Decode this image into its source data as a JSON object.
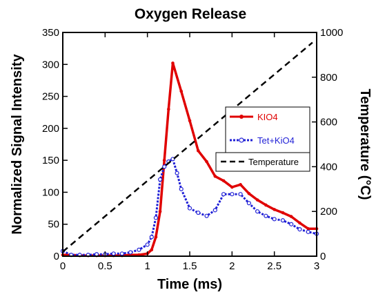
{
  "chart_data": {
    "type": "line",
    "title": "Oxygen Release",
    "xlabel": "Time (ms)",
    "ylabel": "Normalized Signal Intensity",
    "y2label": "Temperature (°C)",
    "xlim": [
      0,
      3
    ],
    "ylim": [
      0,
      350
    ],
    "y2lim": [
      0,
      1000
    ],
    "x_ticks": [
      "0",
      "0.5",
      "1",
      "1.5",
      "2",
      "2.5",
      "3"
    ],
    "y_ticks": [
      "0",
      "50",
      "100",
      "150",
      "200",
      "250",
      "300",
      "350"
    ],
    "y2_ticks": [
      "0",
      "200",
      "400",
      "600",
      "800",
      "1000"
    ],
    "legend_position": "right",
    "series": [
      {
        "name": "KIO4",
        "axis": "left",
        "color": "#e00000",
        "style": "solid",
        "marker": "dot",
        "x": [
          0,
          0.1,
          0.2,
          0.3,
          0.4,
          0.5,
          0.6,
          0.7,
          0.8,
          0.9,
          1.0,
          1.05,
          1.1,
          1.15,
          1.2,
          1.25,
          1.3,
          1.4,
          1.5,
          1.6,
          1.7,
          1.8,
          1.9,
          2.0,
          2.1,
          2.2,
          2.3,
          2.4,
          2.5,
          2.6,
          2.7,
          2.8,
          2.9,
          3.0
        ],
        "y": [
          2,
          2,
          1,
          1,
          1,
          1,
          1,
          1,
          2,
          2,
          4,
          10,
          30,
          70,
          150,
          230,
          302,
          258,
          212,
          165,
          148,
          125,
          118,
          108,
          112,
          98,
          88,
          80,
          73,
          68,
          62,
          52,
          43,
          43
        ]
      },
      {
        "name": "Tet+KiO4",
        "axis": "left",
        "color": "#1f1fd6",
        "style": "dotted",
        "marker": "open-circle",
        "x": [
          0,
          0.1,
          0.2,
          0.3,
          0.4,
          0.5,
          0.6,
          0.7,
          0.8,
          0.9,
          1.0,
          1.05,
          1.1,
          1.15,
          1.2,
          1.25,
          1.3,
          1.35,
          1.4,
          1.5,
          1.6,
          1.7,
          1.8,
          1.9,
          2.0,
          2.1,
          2.2,
          2.3,
          2.4,
          2.5,
          2.6,
          2.7,
          2.8,
          2.9,
          3.0
        ],
        "y": [
          8,
          2,
          2,
          2,
          3,
          3,
          4,
          4,
          6,
          10,
          18,
          30,
          60,
          120,
          140,
          148,
          152,
          130,
          105,
          75,
          68,
          63,
          72,
          97,
          97,
          97,
          83,
          70,
          63,
          58,
          56,
          50,
          42,
          38,
          35
        ]
      },
      {
        "name": "Temperature",
        "axis": "right",
        "color": "#000000",
        "style": "dashed",
        "marker": "none",
        "x": [
          0,
          2.95
        ],
        "y": [
          20,
          955
        ]
      }
    ]
  }
}
